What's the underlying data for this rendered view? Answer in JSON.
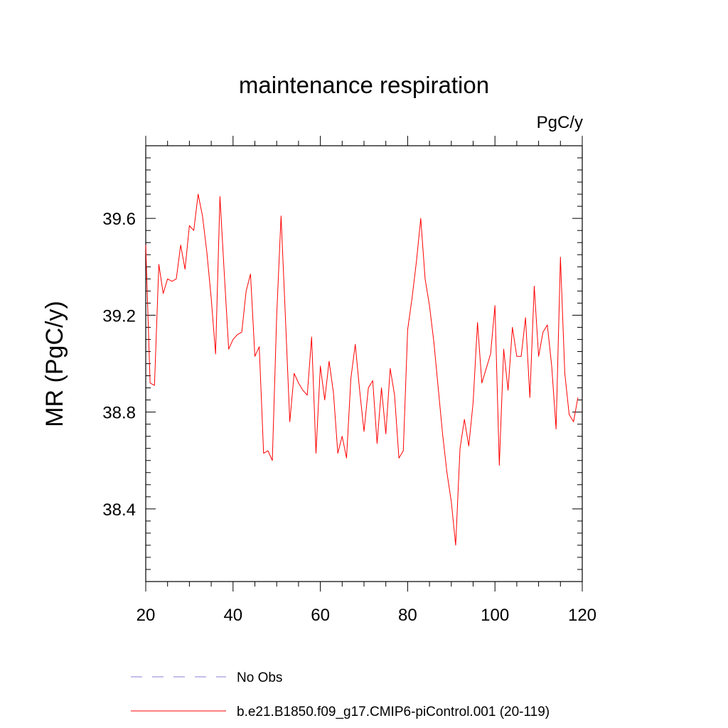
{
  "chart_data": {
    "type": "line",
    "title": "maintenance respiration",
    "units": "PgC/y",
    "xlabel": "",
    "ylabel": "MR  (PgC/y)",
    "xlim": [
      20,
      120
    ],
    "ylim": [
      38.1,
      39.9
    ],
    "xticks": [
      20,
      40,
      60,
      80,
      100,
      120
    ],
    "xtick_labels": [
      "20",
      "40",
      "60",
      "80",
      "100",
      "120"
    ],
    "yticks": [
      38.4,
      38.8,
      39.2,
      39.6
    ],
    "ytick_labels": [
      "38.4",
      "38.8",
      "39.2",
      "39.6"
    ],
    "grid": false,
    "legend_position": "bottom",
    "series": [
      {
        "name": "b.e21.B1850.f09_g17.CMIP6-piControl.001 (20-119)",
        "color": "#ff0000",
        "dash": "solid",
        "x": [
          20,
          21,
          22,
          23,
          24,
          25,
          26,
          27,
          28,
          29,
          30,
          31,
          32,
          33,
          34,
          35,
          36,
          37,
          38,
          39,
          40,
          41,
          42,
          43,
          44,
          45,
          46,
          47,
          48,
          49,
          50,
          51,
          52,
          53,
          54,
          55,
          56,
          57,
          58,
          59,
          60,
          61,
          62,
          63,
          64,
          65,
          66,
          67,
          68,
          69,
          70,
          71,
          72,
          73,
          74,
          75,
          76,
          77,
          78,
          79,
          80,
          81,
          82,
          83,
          84,
          85,
          86,
          87,
          88,
          89,
          90,
          91,
          92,
          93,
          94,
          95,
          96,
          97,
          98,
          99,
          100,
          101,
          102,
          103,
          104,
          105,
          106,
          107,
          108,
          109,
          110,
          111,
          112,
          113,
          114,
          115,
          116,
          117,
          118,
          119
        ],
        "values": [
          39.49,
          38.92,
          38.91,
          39.41,
          39.29,
          39.35,
          39.34,
          39.35,
          39.49,
          39.39,
          39.57,
          39.55,
          39.7,
          39.61,
          39.46,
          39.27,
          39.04,
          39.69,
          39.37,
          39.06,
          39.1,
          39.12,
          39.13,
          39.3,
          39.37,
          39.03,
          39.07,
          38.63,
          38.64,
          38.6,
          39.2,
          39.61,
          39.19,
          38.76,
          38.96,
          38.92,
          38.89,
          38.87,
          39.11,
          38.63,
          38.99,
          38.85,
          39.01,
          38.88,
          38.63,
          38.7,
          38.61,
          38.94,
          39.08,
          38.89,
          38.72,
          38.9,
          38.93,
          38.67,
          38.9,
          38.71,
          38.98,
          38.87,
          38.61,
          38.64,
          39.14,
          39.27,
          39.42,
          39.6,
          39.35,
          39.24,
          39.09,
          38.9,
          38.71,
          38.55,
          38.43,
          38.25,
          38.65,
          38.77,
          38.66,
          38.84,
          39.17,
          38.92,
          38.98,
          39.04,
          39.24,
          38.58,
          39.06,
          38.89,
          39.15,
          39.03,
          39.03,
          39.19,
          38.86,
          39.32,
          39.03,
          39.13,
          39.16,
          38.99,
          38.73,
          39.44,
          38.96,
          38.79,
          38.76,
          38.86
        ]
      }
    ]
  },
  "legend": [
    {
      "label": "No Obs",
      "color": "#8a7fd0",
      "dash": "dashed"
    },
    {
      "label": "b.e21.B1850.f09_g17.CMIP6-piControl.001 (20-119)",
      "color": "#ff0000",
      "dash": "solid"
    }
  ]
}
